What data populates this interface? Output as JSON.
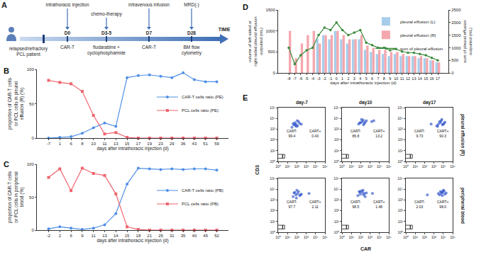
{
  "timeline": {
    "label": "A",
    "patient": "relapsed/refractory PCL patient",
    "axis_label": "TIME",
    "events": [
      {
        "day": "D0",
        "above": "intrathoracic injection",
        "below": "CAR-T"
      },
      {
        "day": "D3-5",
        "above": "chemo-therapy",
        "below": "fludarabine + cyclophosphamide"
      },
      {
        "day": "D7",
        "above": "intravenous infusion",
        "below": "CAR-T"
      },
      {
        "day": "D28",
        "above": "MRD(-)",
        "below": "BM flow cytometry"
      }
    ]
  },
  "chart_data": [
    {
      "label": "B",
      "type": "line",
      "x_title": "days after intrathoracic injection (d)",
      "y_title": "proportion of CAR-T cells or PCL cells in pleural effusion (R) (%)",
      "categories": [
        "-7",
        "1",
        "6",
        "8",
        "10",
        "11",
        "13",
        "15",
        "17",
        "19",
        "23",
        "29",
        "36",
        "43",
        "51",
        "59"
      ],
      "series": [
        {
          "name": "CAR-T cells ratio (PE)",
          "color": "#4f8fe6",
          "marker": "circle",
          "values": [
            0,
            1,
            2,
            7,
            15,
            22,
            17,
            88,
            91,
            92,
            90,
            88,
            95,
            85,
            82,
            82
          ]
        },
        {
          "name": "PCL cells ratio (PE)",
          "color": "#f0646e",
          "marker": "square",
          "values": [
            84,
            81,
            79,
            68,
            33,
            6,
            8,
            1,
            0,
            0,
            0,
            0,
            0,
            0,
            0,
            0
          ]
        }
      ],
      "ylim": [
        0,
        100
      ],
      "yticks": [
        0,
        50,
        100
      ],
      "grid": false,
      "legend": "right"
    },
    {
      "label": "C",
      "type": "line",
      "x_title": "days after intrathoracic injection (d)",
      "y_title": "proportion of CAR-T cells or PCL cells in peripheral blood (%)",
      "categories": [
        "-2",
        "2",
        "6",
        "9",
        "11",
        "13",
        "14",
        "15",
        "18",
        "21",
        "25",
        "31",
        "35",
        "40",
        "45",
        "52"
      ],
      "series": [
        {
          "name": "CAR-T cells ratio (PB)",
          "color": "#4f8fe6",
          "marker": "circle",
          "values": [
            2,
            5,
            3,
            1,
            3,
            8,
            25,
            70,
            94,
            93,
            92,
            93,
            92,
            93,
            93,
            91
          ]
        },
        {
          "name": "PCL cells ratio (PB)",
          "color": "#f0646e",
          "marker": "square",
          "values": [
            80,
            93,
            60,
            94,
            86,
            83,
            55,
            5,
            1,
            0,
            0,
            0,
            0,
            0,
            0,
            0
          ]
        }
      ],
      "ylim": [
        0,
        100
      ],
      "yticks": [
        0,
        50,
        100
      ],
      "grid": false,
      "legend": "right"
    },
    {
      "label": "D",
      "type": "bar",
      "x_title": "days after intrathoracic injection (d)",
      "y_title": "volume of left-sided or right-sided pleural effusion outputted (mL)",
      "y2_title": "sum of pleural effusion outputted (mL)",
      "categories": [
        "-8",
        "-7",
        "-6",
        "-5",
        "-4",
        "-3",
        "-2",
        "-1",
        "0",
        "1",
        "2",
        "3",
        "4",
        "5",
        "6",
        "7",
        "8",
        "9",
        "10",
        "11",
        "12",
        "13",
        "14",
        "15",
        "16",
        "17"
      ],
      "series": [
        {
          "name": "pleural effusion (L)",
          "type": "bar",
          "color": "#a8cdea",
          "values": [
            0,
            0,
            0,
            0,
            0,
            800,
            900,
            800,
            1000,
            800,
            700,
            800,
            800,
            550,
            500,
            450,
            450,
            400,
            450,
            400,
            400,
            400,
            350,
            350,
            300,
            250
          ]
        },
        {
          "name": "pleural effusion (R)",
          "type": "bar",
          "color": "#f4a7ad",
          "values": [
            1000,
            350,
            700,
            900,
            1000,
            700,
            900,
            900,
            1000,
            900,
            800,
            800,
            900,
            650,
            600,
            550,
            550,
            500,
            500,
            450,
            400,
            400,
            400,
            350,
            300,
            250
          ]
        },
        {
          "name": "sum of pleural effusion",
          "type": "line",
          "axis": "y2",
          "color": "#3a8a3a",
          "marker": "circle",
          "values": [
            1000,
            350,
            700,
            900,
            1000,
            1500,
            1800,
            1700,
            2000,
            1700,
            1500,
            1600,
            1700,
            1200,
            1100,
            1000,
            1000,
            900,
            950,
            850,
            800,
            800,
            750,
            700,
            600,
            500
          ]
        }
      ],
      "ylim": [
        0,
        1500
      ],
      "yticks": [
        0,
        500,
        1000,
        1500
      ],
      "y2lim": [
        0,
        2500
      ],
      "y2ticks": [
        0,
        500,
        1000,
        1500,
        2000,
        2500
      ],
      "grid": false,
      "legend": "upper right"
    },
    {
      "label": "E",
      "type": "scatter",
      "x_title": "CAR",
      "y_title": "CD3",
      "log": true,
      "color": "#2b50c8",
      "marker": "circle",
      "columns": [
        "day-7",
        "day10",
        "day17"
      ],
      "rows": [
        "pleural effusion (R)",
        "peripheral blood"
      ],
      "xlim": [
        1,
        100000
      ],
      "ylim": [
        1,
        100000
      ],
      "xticks": [
        {
          "value": 1,
          "label": "10⁰"
        },
        {
          "value": 10,
          "label": "10¹"
        },
        {
          "value": 100,
          "label": "10²"
        },
        {
          "value": 1000,
          "label": "10³"
        },
        {
          "value": 10000,
          "label": "10⁴"
        },
        {
          "value": 100000,
          "label": "10⁵"
        }
      ],
      "yticks": [
        {
          "value": 1,
          "label": "10⁰"
        },
        {
          "value": 10,
          "label": "10¹"
        },
        {
          "value": 100,
          "label": "10²"
        },
        {
          "value": 1000,
          "label": "10³"
        },
        {
          "value": 10000,
          "label": "10⁴"
        },
        {
          "value": 100000,
          "label": "10⁵"
        }
      ],
      "gate_x": 1000,
      "gate_y": [
        100,
        30000
      ],
      "gate_labels": [
        "CART-",
        "CART+"
      ],
      "panels": [
        {
          "row": 0,
          "col": 0,
          "values": [
            99.4,
            0.43
          ],
          "x": [
            30,
            50,
            80,
            120,
            60,
            200,
            150,
            90,
            300,
            40,
            110,
            70
          ],
          "y": [
            1500,
            2500,
            3000,
            2000,
            4000,
            3500,
            5000,
            1800,
            2800,
            3200,
            6000,
            2200
          ]
        },
        {
          "row": 0,
          "col": 1,
          "values": [
            86.8,
            13.2
          ],
          "x": [
            60,
            100,
            150,
            250,
            400,
            120,
            300,
            200,
            80,
            1500,
            2500,
            180
          ],
          "y": [
            3000,
            4000,
            5000,
            3500,
            6000,
            8000,
            4500,
            2500,
            3800,
            5000,
            6000,
            7000
          ]
        },
        {
          "row": 0,
          "col": 2,
          "values": [
            9.73,
            90.3
          ],
          "x": [
            2000,
            3000,
            5000,
            8000,
            4000,
            6000,
            12000,
            2500,
            7000,
            15000,
            500,
            10000
          ],
          "y": [
            2000,
            3000,
            4000,
            2500,
            5000,
            6000,
            3500,
            1800,
            8000,
            4500,
            3000,
            2800
          ]
        },
        {
          "row": 1,
          "col": 0,
          "values": [
            97.7,
            2.11
          ],
          "x": [
            40,
            80,
            120,
            60,
            200,
            150,
            300,
            100,
            50,
            90,
            250,
            2000
          ],
          "y": [
            2000,
            3000,
            4000,
            5000,
            2500,
            6000,
            3500,
            8000,
            4500,
            1500,
            3000,
            4000
          ]
        },
        {
          "row": 1,
          "col": 1,
          "values": [
            98.5,
            1.48
          ],
          "x": [
            50,
            90,
            150,
            250,
            70,
            200,
            400,
            120,
            300,
            80,
            180,
            1800
          ],
          "y": [
            2500,
            3500,
            5000,
            4000,
            6000,
            3000,
            4500,
            7000,
            2000,
            5500,
            8000,
            4000
          ]
        },
        {
          "row": 1,
          "col": 2,
          "values": [
            2.03,
            98.0
          ],
          "value_labels": [
            "2.03",
            "98.0"
          ],
          "x": [
            4000,
            6000,
            9000,
            15000,
            5000,
            8000,
            20000,
            12000,
            7000,
            10000,
            3000,
            200
          ],
          "y": [
            3000,
            4000,
            5000,
            3500,
            6000,
            2500,
            4500,
            7000,
            5500,
            8000,
            4000,
            3000
          ]
        }
      ]
    }
  ]
}
